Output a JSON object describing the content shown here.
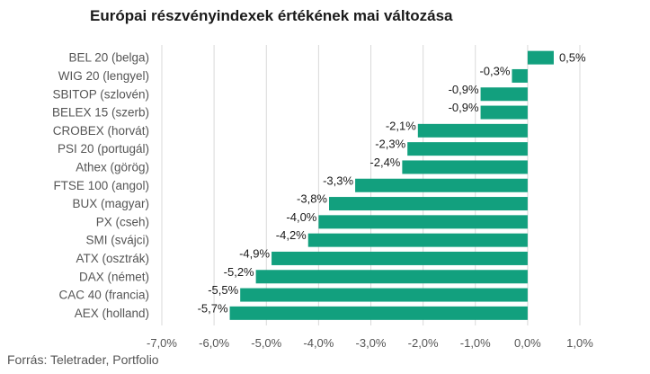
{
  "title": "Európai részvényindexek értékének mai változása",
  "source": "Forrás: Teletrader, Portfolio",
  "colors": {
    "bar": "#12a07e",
    "grid": "#d9d9d9"
  },
  "chart_data": {
    "type": "bar",
    "orientation": "horizontal",
    "title": "Európai részvényindexek értékének mai változása",
    "categories": [
      "BEL 20 (belga)",
      "WIG 20 (lengyel)",
      "SBITOP (szlovén)",
      "BELEX 15 (szerb)",
      "CROBEX (horvát)",
      "PSI 20 (portugál)",
      "Athex (görög)",
      "FTSE 100 (angol)",
      "BUX (magyar)",
      "PX (cseh)",
      "SMI (svájci)",
      "ATX (osztrák)",
      "DAX (német)",
      "CAC 40 (francia)",
      "AEX (holland)"
    ],
    "values": [
      0.5,
      -0.3,
      -0.9,
      -0.9,
      -2.1,
      -2.3,
      -2.4,
      -3.3,
      -3.8,
      -4.0,
      -4.2,
      -4.9,
      -5.2,
      -5.5,
      -5.7
    ],
    "value_labels": [
      "0,5%",
      "-0,3%",
      "-0,9%",
      "-0,9%",
      "-2,1%",
      "-2,3%",
      "-2,4%",
      "-3,3%",
      "-3,8%",
      "-4,0%",
      "-4,2%",
      "-4,9%",
      "-5,2%",
      "-5,5%",
      "-5,7%"
    ],
    "xlim": [
      -7.0,
      1.0
    ],
    "xticks": [
      -7,
      -6,
      -5,
      -4,
      -3,
      -2,
      -1,
      0,
      1
    ],
    "xtick_labels": [
      "-7,0%",
      "-6,0%",
      "-5,0%",
      "-4,0%",
      "-3,0%",
      "-2,0%",
      "-1,0%",
      "0,0%",
      "1,0%"
    ],
    "grid": true,
    "legend": "none"
  }
}
